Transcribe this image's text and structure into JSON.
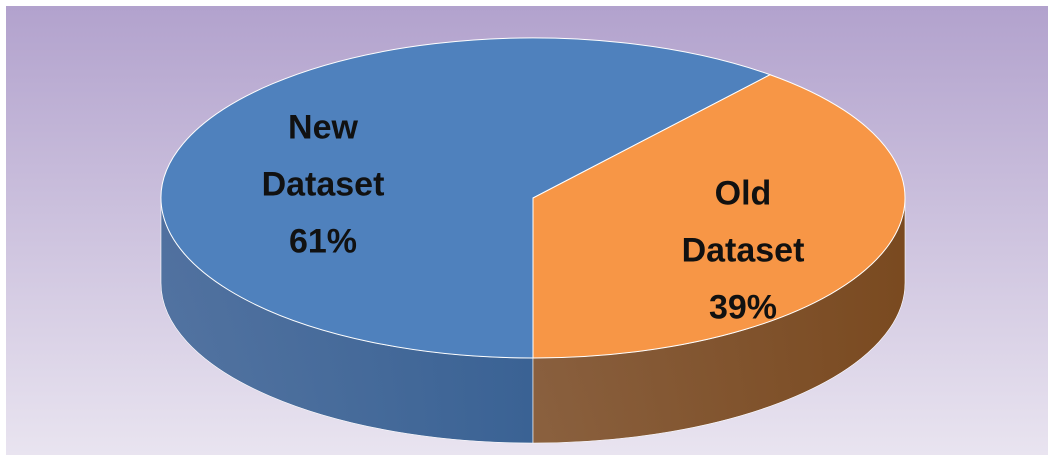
{
  "chart_data": {
    "type": "pie",
    "categories": [
      "New Dataset",
      "Old Dataset"
    ],
    "values": [
      61,
      39
    ],
    "value_labels": [
      "61%",
      "39%"
    ],
    "colors": [
      "#4f81bd",
      "#f79646"
    ],
    "side_colors": [
      "#3a6294",
      "#7a4a20"
    ]
  }
}
